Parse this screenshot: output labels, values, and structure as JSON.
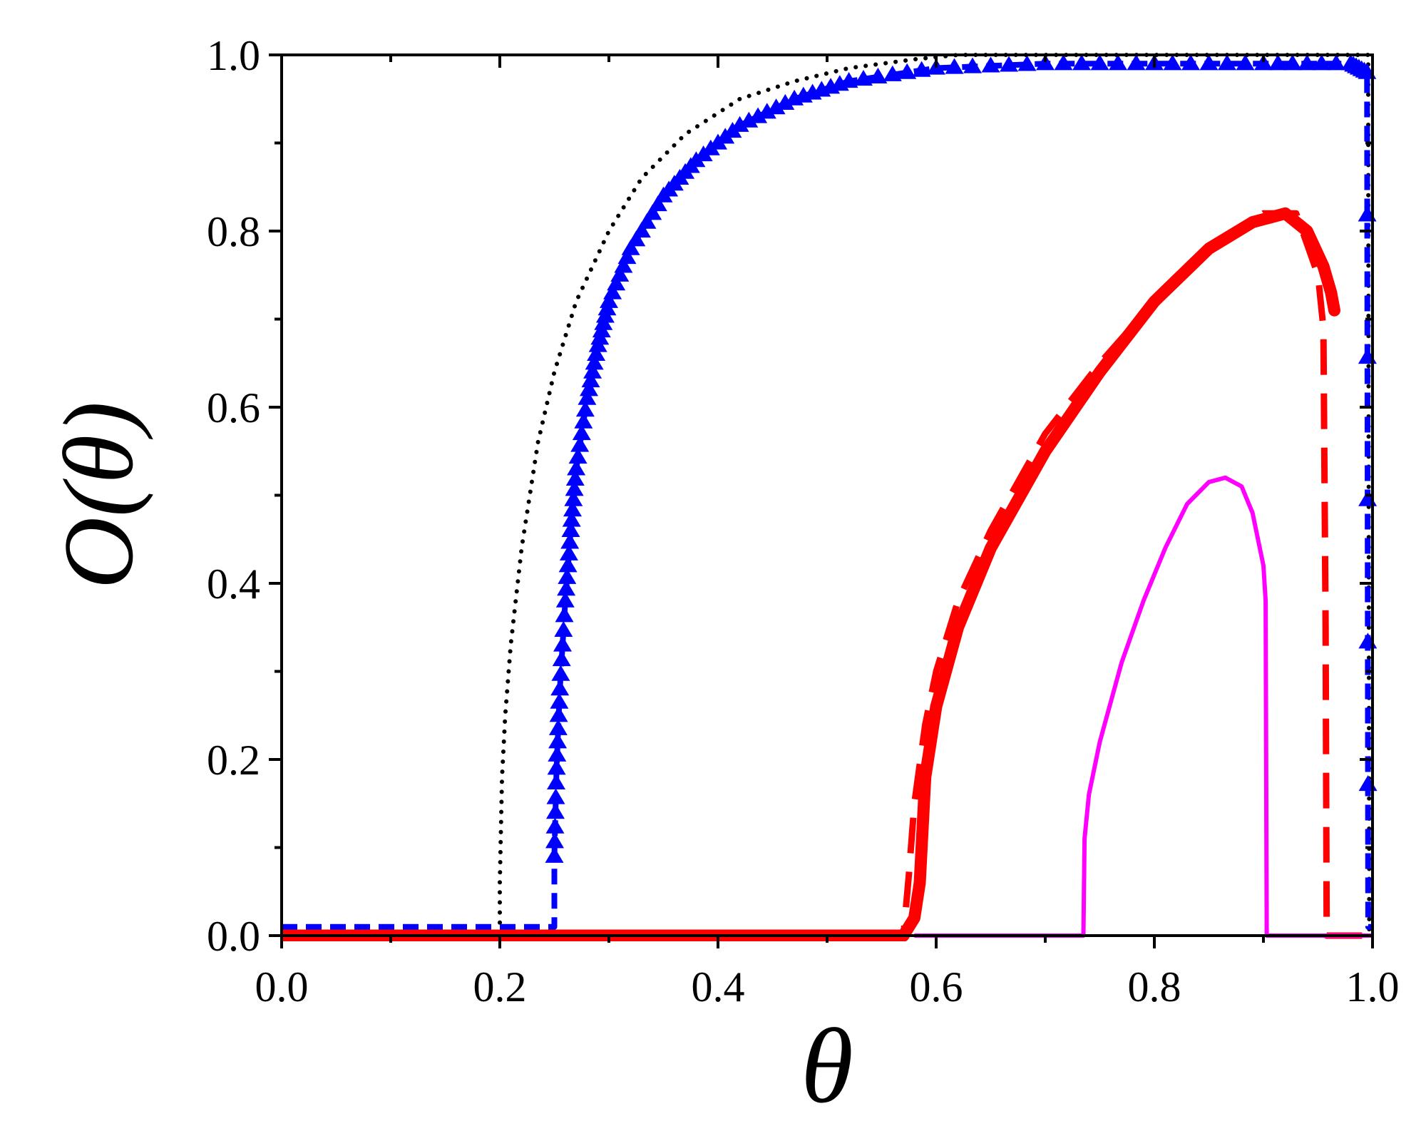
{
  "chart_data": {
    "type": "line",
    "xlabel": "θ",
    "ylabel": "O(θ)",
    "xlim": [
      0.0,
      1.0
    ],
    "ylim": [
      0.0,
      1.0
    ],
    "xticks": [
      "0.0",
      "0.2",
      "0.4",
      "0.6",
      "0.8",
      "1.0"
    ],
    "yticks": [
      "0.0",
      "0.2",
      "0.4",
      "0.6",
      "0.8",
      "1.0"
    ],
    "grid": false,
    "legend": "none",
    "series": [
      {
        "style": "dotted",
        "color": "#000000",
        "x": [
          0.0,
          0.2,
          0.2,
          0.202,
          0.205,
          0.21,
          0.22,
          0.235,
          0.25,
          0.27,
          0.3,
          0.33,
          0.37,
          0.42,
          0.47,
          0.52,
          0.58,
          0.62,
          0.7,
          0.8,
          0.9,
          0.97,
          0.996,
          0.997,
          1.0
        ],
        "y": [
          0.0,
          0.0,
          0.06,
          0.18,
          0.25,
          0.33,
          0.44,
          0.56,
          0.64,
          0.72,
          0.8,
          0.86,
          0.91,
          0.95,
          0.97,
          0.985,
          0.995,
          1.0,
          1.0,
          1.0,
          1.0,
          1.0,
          1.0,
          0.0,
          0.0
        ]
      },
      {
        "style": "dashed-triangle-markers",
        "color": "#0000ff",
        "x": [
          0.0,
          0.25,
          0.25,
          0.252,
          0.255,
          0.26,
          0.265,
          0.27,
          0.28,
          0.29,
          0.3,
          0.32,
          0.35,
          0.38,
          0.42,
          0.47,
          0.52,
          0.6,
          0.7,
          0.8,
          0.9,
          0.98,
          0.995,
          0.996,
          1.0
        ],
        "y": [
          0.01,
          0.01,
          0.09,
          0.19,
          0.28,
          0.38,
          0.46,
          0.53,
          0.61,
          0.67,
          0.72,
          0.78,
          0.84,
          0.88,
          0.92,
          0.95,
          0.97,
          0.985,
          0.99,
          0.99,
          0.99,
          0.99,
          0.98,
          0.01,
          0.01
        ]
      },
      {
        "style": "dashed",
        "color": "#ff0000",
        "x": [
          0.0,
          0.57,
          0.575,
          0.58,
          0.59,
          0.6,
          0.62,
          0.65,
          0.7,
          0.75,
          0.8,
          0.85,
          0.9,
          0.93,
          0.95,
          0.955,
          0.957,
          0.958,
          1.0
        ],
        "y": [
          0.0,
          0.0,
          0.07,
          0.15,
          0.24,
          0.3,
          0.38,
          0.46,
          0.57,
          0.65,
          0.72,
          0.78,
          0.82,
          0.82,
          0.75,
          0.69,
          0.35,
          0.0,
          0.0
        ]
      },
      {
        "style": "solid-thick",
        "color": "#ff0000",
        "x": [
          0.0,
          0.57,
          0.58,
          0.585,
          0.59,
          0.6,
          0.62,
          0.65,
          0.7,
          0.75,
          0.8,
          0.85,
          0.89,
          0.92,
          0.94,
          0.955,
          0.962,
          0.965
        ],
        "y": [
          0.0,
          0.0,
          0.02,
          0.06,
          0.18,
          0.26,
          0.35,
          0.44,
          0.55,
          0.64,
          0.72,
          0.78,
          0.81,
          0.82,
          0.8,
          0.76,
          0.73,
          0.71
        ]
      },
      {
        "style": "solid",
        "color": "#ff00ff",
        "x": [
          0.58,
          0.735,
          0.736,
          0.74,
          0.75,
          0.77,
          0.79,
          0.81,
          0.83,
          0.85,
          0.865,
          0.88,
          0.89,
          0.9,
          0.902,
          0.903,
          1.0
        ],
        "y": [
          0.0,
          0.0,
          0.11,
          0.16,
          0.22,
          0.31,
          0.38,
          0.44,
          0.49,
          0.515,
          0.52,
          0.51,
          0.48,
          0.42,
          0.38,
          0.0,
          0.0
        ]
      }
    ]
  }
}
